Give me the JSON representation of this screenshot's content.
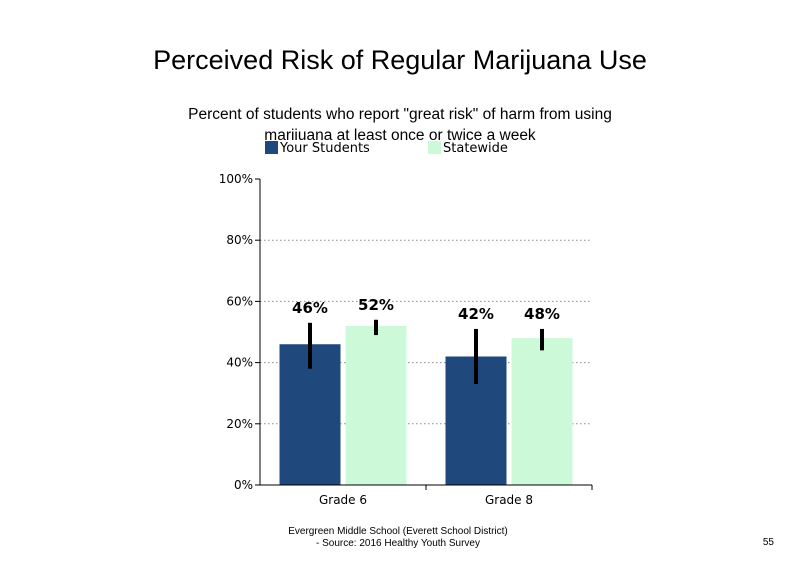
{
  "slide": {
    "footer_line1": "Evergreen Middle School (Everett School District)",
    "footer_line2": "- Source: 2016 Healthy  Youth Survey",
    "page_number": "55"
  },
  "chart_data": {
    "type": "bar",
    "title": "Perceived Risk of Regular Marijuana Use",
    "subtitle": "Percent of students who report \"great risk\" of harm from using marijuana at least once or twice a week",
    "categories": [
      "Grade 6",
      "Grade 8"
    ],
    "series": [
      {
        "name": "Your Students",
        "color": "#1f497d",
        "values": [
          46,
          42
        ],
        "data_labels": [
          "46%",
          "42%"
        ],
        "error_low": [
          38,
          33
        ],
        "error_high": [
          53,
          51
        ]
      },
      {
        "name": "Statewide",
        "color": "#ccfad8",
        "values": [
          52,
          48
        ],
        "data_labels": [
          "52%",
          "48%"
        ],
        "error_low": [
          49,
          44
        ],
        "error_high": [
          54,
          51
        ]
      }
    ],
    "ylim": [
      0,
      100
    ],
    "yticks": [
      0,
      20,
      40,
      60,
      80,
      100
    ],
    "ytick_labels": [
      "0%",
      "20%",
      "40%",
      "60%",
      "80%",
      "100%"
    ],
    "xlabel": "",
    "ylabel": "",
    "gridlines": "dotted",
    "legend_position": "top"
  }
}
